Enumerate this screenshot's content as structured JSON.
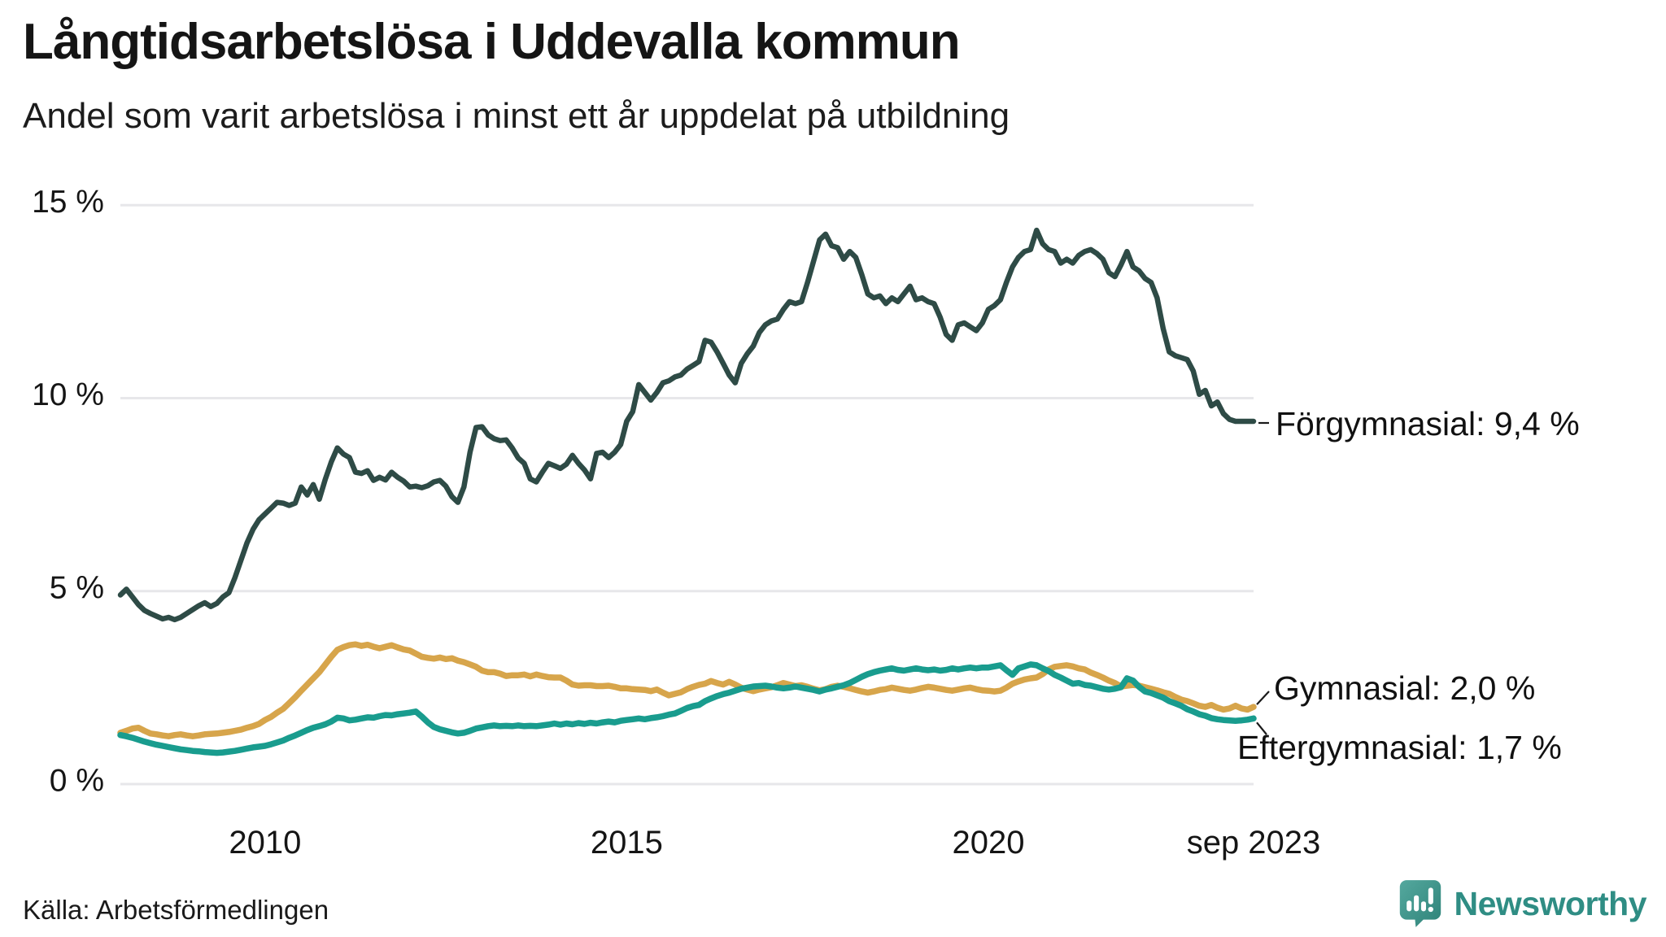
{
  "header": {
    "title": "Långtidsarbetslösa i Uddevalla kommun",
    "subtitle": "Andel som varit arbetslösa i minst ett år uppdelat på utbildning"
  },
  "footer": {
    "source": "Källa: Arbetsförmedlingen",
    "brand": "Newsworthy"
  },
  "colors": {
    "forgymnasial": "#2e4b46",
    "gymnasial": "#d7a54b",
    "eftergymnasial": "#199c8e",
    "gridline": "#e7e7ea",
    "text": "#151515",
    "brand_teal": "#2f8d84",
    "logo_fill_light": "#54a89e",
    "logo_fill_dark": "#2f8379"
  },
  "chart_data": {
    "type": "line",
    "title": "Långtidsarbetslösa i Uddevalla kommun",
    "subtitle": "Andel som varit arbetslösa i minst ett år uppdelat på utbildning",
    "unit": "%",
    "x_start": 2008.0,
    "x_end": 2023.6667,
    "x_interval_months": 1,
    "ylim": [
      0,
      15.5
    ],
    "grid": "horizontal",
    "legend_position": "end-of-line-labels",
    "y_ticks": [
      {
        "value": 0,
        "label": "0 %"
      },
      {
        "value": 5,
        "label": "5 %"
      },
      {
        "value": 10,
        "label": "10 %"
      },
      {
        "value": 15,
        "label": "15 %"
      }
    ],
    "x_ticks": [
      {
        "value": 2010,
        "label": "2010"
      },
      {
        "value": 2015,
        "label": "2015"
      },
      {
        "value": 2020,
        "label": "2020"
      },
      {
        "value": 2023.6667,
        "label": "sep 2023"
      }
    ],
    "series": [
      {
        "name": "Förgymnasial",
        "annotation": "Förgymnasial: 9,4 %",
        "last_value": 9.4,
        "color": "#2e4b46",
        "values": [
          4.9,
          5.05,
          4.85,
          4.65,
          4.5,
          4.42,
          4.35,
          4.28,
          4.32,
          4.26,
          4.32,
          4.42,
          4.52,
          4.62,
          4.7,
          4.6,
          4.68,
          4.85,
          4.96,
          5.35,
          5.8,
          6.25,
          6.6,
          6.85,
          7.0,
          7.15,
          7.3,
          7.28,
          7.22,
          7.28,
          7.7,
          7.49,
          7.76,
          7.38,
          7.9,
          8.35,
          8.71,
          8.55,
          8.46,
          8.08,
          8.05,
          8.12,
          7.87,
          7.95,
          7.88,
          8.08,
          7.95,
          7.85,
          7.7,
          7.72,
          7.68,
          7.73,
          7.83,
          7.87,
          7.72,
          7.45,
          7.3,
          7.7,
          8.6,
          9.24,
          9.26,
          9.05,
          8.95,
          8.9,
          8.92,
          8.71,
          8.45,
          8.31,
          7.91,
          7.83,
          8.08,
          8.31,
          8.25,
          8.18,
          8.29,
          8.52,
          8.31,
          8.14,
          7.91,
          8.57,
          8.6,
          8.46,
          8.6,
          8.8,
          9.4,
          9.65,
          10.35,
          10.15,
          9.95,
          10.15,
          10.4,
          10.45,
          10.55,
          10.6,
          10.75,
          10.85,
          10.95,
          11.5,
          11.45,
          11.2,
          10.9,
          10.6,
          10.4,
          10.9,
          11.15,
          11.35,
          11.7,
          11.9,
          12.0,
          12.05,
          12.3,
          12.5,
          12.45,
          12.5,
          13.0,
          13.55,
          14.1,
          14.25,
          13.95,
          13.9,
          13.6,
          13.8,
          13.65,
          13.2,
          12.7,
          12.6,
          12.65,
          12.45,
          12.6,
          12.5,
          12.7,
          12.9,
          12.55,
          12.6,
          12.5,
          12.45,
          12.1,
          11.65,
          11.5,
          11.9,
          11.95,
          11.85,
          11.75,
          11.95,
          12.3,
          12.4,
          12.55,
          13.0,
          13.4,
          13.65,
          13.8,
          13.85,
          14.35,
          14.0,
          13.85,
          13.8,
          13.5,
          13.6,
          13.5,
          13.7,
          13.8,
          13.85,
          13.75,
          13.6,
          13.25,
          13.15,
          13.45,
          13.8,
          13.4,
          13.3,
          13.1,
          13.0,
          12.6,
          11.8,
          11.2,
          11.1,
          11.05,
          11.0,
          10.7,
          10.1,
          10.2,
          9.8,
          9.9,
          9.6,
          9.45,
          9.4,
          9.4,
          9.4,
          9.4
        ]
      },
      {
        "name": "Gymnasial",
        "annotation": "Gymnasial: 2,0 %",
        "last_value": 2.0,
        "color": "#d7a54b",
        "values": [
          1.33,
          1.38,
          1.44,
          1.46,
          1.38,
          1.31,
          1.29,
          1.26,
          1.24,
          1.27,
          1.29,
          1.26,
          1.24,
          1.26,
          1.29,
          1.3,
          1.31,
          1.33,
          1.35,
          1.38,
          1.41,
          1.46,
          1.5,
          1.56,
          1.66,
          1.74,
          1.85,
          1.95,
          2.1,
          2.25,
          2.42,
          2.58,
          2.74,
          2.9,
          3.1,
          3.3,
          3.48,
          3.55,
          3.6,
          3.62,
          3.58,
          3.61,
          3.56,
          3.52,
          3.56,
          3.6,
          3.54,
          3.49,
          3.46,
          3.38,
          3.3,
          3.27,
          3.25,
          3.28,
          3.24,
          3.26,
          3.2,
          3.16,
          3.1,
          3.04,
          2.94,
          2.9,
          2.9,
          2.86,
          2.8,
          2.82,
          2.82,
          2.84,
          2.79,
          2.84,
          2.8,
          2.77,
          2.76,
          2.76,
          2.68,
          2.58,
          2.55,
          2.56,
          2.56,
          2.54,
          2.54,
          2.55,
          2.52,
          2.48,
          2.48,
          2.46,
          2.45,
          2.44,
          2.41,
          2.45,
          2.37,
          2.3,
          2.34,
          2.38,
          2.46,
          2.52,
          2.57,
          2.6,
          2.67,
          2.62,
          2.58,
          2.65,
          2.58,
          2.5,
          2.45,
          2.41,
          2.45,
          2.48,
          2.51,
          2.56,
          2.62,
          2.58,
          2.54,
          2.56,
          2.52,
          2.47,
          2.43,
          2.46,
          2.52,
          2.55,
          2.52,
          2.48,
          2.44,
          2.4,
          2.37,
          2.4,
          2.44,
          2.46,
          2.5,
          2.47,
          2.44,
          2.42,
          2.45,
          2.49,
          2.52,
          2.5,
          2.47,
          2.44,
          2.42,
          2.45,
          2.48,
          2.5,
          2.46,
          2.43,
          2.42,
          2.4,
          2.42,
          2.5,
          2.6,
          2.66,
          2.71,
          2.74,
          2.76,
          2.85,
          2.97,
          3.04,
          3.06,
          3.08,
          3.05,
          3.0,
          2.97,
          2.89,
          2.83,
          2.76,
          2.68,
          2.62,
          2.53,
          2.55,
          2.57,
          2.55,
          2.51,
          2.47,
          2.43,
          2.38,
          2.34,
          2.26,
          2.19,
          2.15,
          2.09,
          2.03,
          2.0,
          2.05,
          1.98,
          1.93,
          1.96,
          2.03,
          1.96,
          1.93,
          2.0
        ]
      },
      {
        "name": "Eftergymnasial",
        "annotation": "Eftergymnasial: 1,7 %",
        "last_value": 1.7,
        "color": "#199c8e",
        "values": [
          1.27,
          1.24,
          1.2,
          1.15,
          1.1,
          1.06,
          1.02,
          0.99,
          0.96,
          0.93,
          0.9,
          0.88,
          0.86,
          0.85,
          0.83,
          0.82,
          0.81,
          0.82,
          0.84,
          0.86,
          0.89,
          0.92,
          0.95,
          0.97,
          0.99,
          1.03,
          1.08,
          1.13,
          1.2,
          1.26,
          1.33,
          1.4,
          1.46,
          1.5,
          1.55,
          1.62,
          1.72,
          1.7,
          1.65,
          1.67,
          1.7,
          1.73,
          1.72,
          1.76,
          1.79,
          1.78,
          1.81,
          1.83,
          1.85,
          1.88,
          1.75,
          1.6,
          1.48,
          1.42,
          1.38,
          1.34,
          1.31,
          1.33,
          1.38,
          1.44,
          1.47,
          1.5,
          1.52,
          1.5,
          1.51,
          1.5,
          1.52,
          1.5,
          1.51,
          1.5,
          1.52,
          1.54,
          1.57,
          1.54,
          1.57,
          1.55,
          1.58,
          1.56,
          1.59,
          1.57,
          1.6,
          1.62,
          1.6,
          1.64,
          1.66,
          1.68,
          1.7,
          1.68,
          1.71,
          1.73,
          1.76,
          1.8,
          1.83,
          1.9,
          1.97,
          2.02,
          2.05,
          2.15,
          2.22,
          2.28,
          2.33,
          2.37,
          2.42,
          2.47,
          2.5,
          2.53,
          2.54,
          2.55,
          2.53,
          2.5,
          2.48,
          2.5,
          2.53,
          2.5,
          2.47,
          2.44,
          2.4,
          2.45,
          2.48,
          2.52,
          2.56,
          2.62,
          2.7,
          2.78,
          2.85,
          2.9,
          2.94,
          2.97,
          3.0,
          2.96,
          2.94,
          2.97,
          3.0,
          2.97,
          2.95,
          2.97,
          2.94,
          2.96,
          3.0,
          2.97,
          3.0,
          3.02,
          3.0,
          3.02,
          3.02,
          3.05,
          3.08,
          2.95,
          2.83,
          3.0,
          3.05,
          3.1,
          3.08,
          3.0,
          2.93,
          2.83,
          2.76,
          2.68,
          2.6,
          2.62,
          2.57,
          2.55,
          2.51,
          2.47,
          2.45,
          2.47,
          2.51,
          2.74,
          2.68,
          2.52,
          2.4,
          2.36,
          2.3,
          2.24,
          2.15,
          2.09,
          2.03,
          1.94,
          1.88,
          1.81,
          1.77,
          1.71,
          1.68,
          1.66,
          1.65,
          1.64,
          1.65,
          1.67,
          1.7
        ]
      }
    ]
  }
}
